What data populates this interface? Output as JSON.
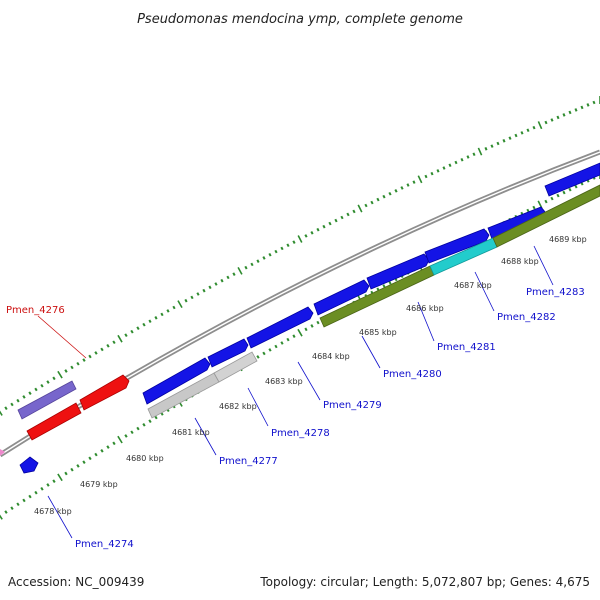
{
  "title": "Pseudomonas mendocina ymp, complete genome",
  "footer": {
    "accession": "Accession: NC_009439",
    "topology": "Topology: circular; Length: 5,072,807 bp; Genes: 4,675"
  },
  "colors": {
    "backbone": "#9a9a9a",
    "tick": "#2e8b2e",
    "forward_gene": "#1414e6",
    "label_blue": "#1010cc",
    "label_red": "#cc1010",
    "red_gene": "#ee1111",
    "purple_gene": "#7766cc",
    "olive_gene": "#6b8e23",
    "cyan_gene": "#22cccc",
    "gray_gene": "#c8c8c8",
    "pink_gene": "#ee88cc"
  },
  "kbp_labels": [
    "4678 kbp",
    "4679 kbp",
    "4680 kbp",
    "4681 kbp",
    "4682 kbp",
    "4683 kbp",
    "4684 kbp",
    "4685 kbp",
    "4686 kbp",
    "4687 kbp",
    "4688 kbp",
    "4689 kbp"
  ],
  "gene_labels": [
    {
      "text": "Pmen_4276",
      "color": "red"
    },
    {
      "text": "Pmen_4274",
      "color": "blue"
    },
    {
      "text": "Pmen_4277",
      "color": "blue"
    },
    {
      "text": "Pmen_4278",
      "color": "blue"
    },
    {
      "text": "Pmen_4279",
      "color": "blue"
    },
    {
      "text": "Pmen_4280",
      "color": "blue"
    },
    {
      "text": "Pmen_4281",
      "color": "blue"
    },
    {
      "text": "Pmen_4282",
      "color": "blue"
    },
    {
      "text": "Pmen_4283",
      "color": "blue"
    }
  ]
}
